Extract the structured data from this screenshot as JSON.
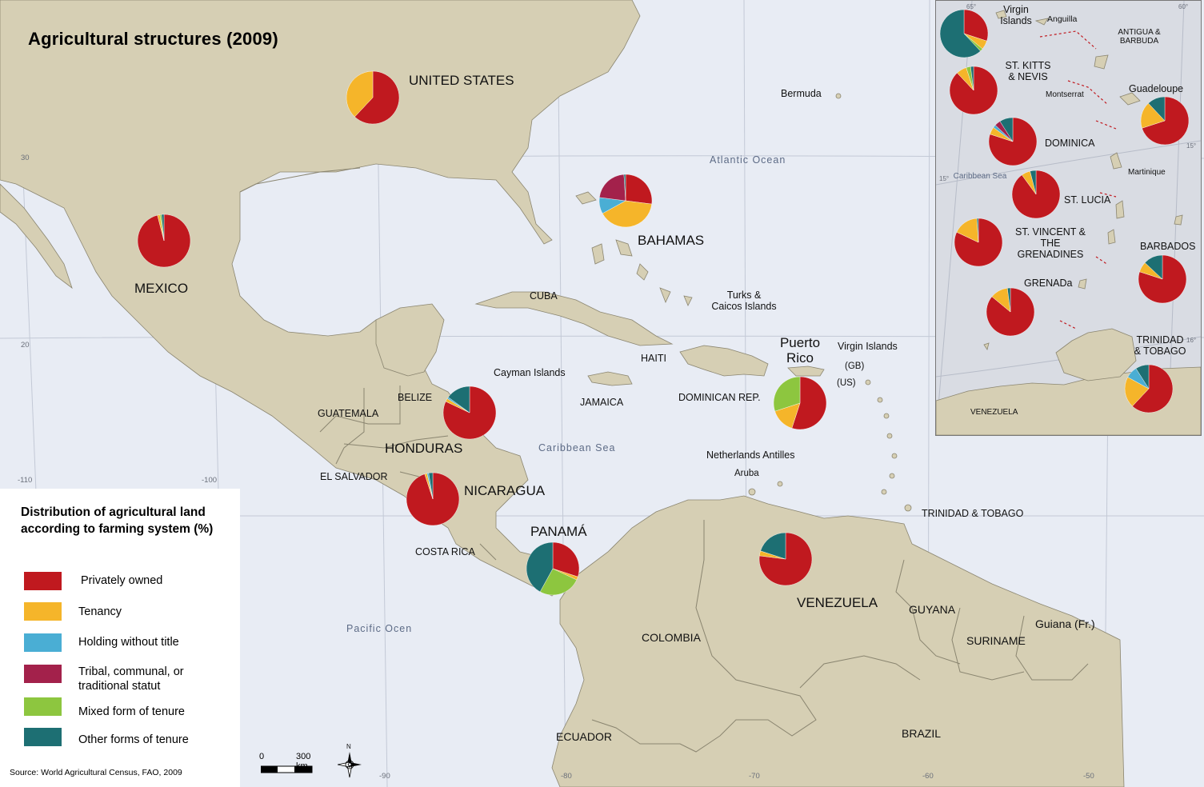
{
  "title": "Agricultural structures  (2009)",
  "source": "Source: World Agricultural Census, FAO, 2009",
  "colors": {
    "privately_owned": "#c0191f",
    "tenancy": "#f5b52a",
    "holding_without_title": "#4aaed4",
    "tribal": "#a3214b",
    "mixed": "#8dc63f",
    "other": "#1d6f73",
    "sea": "#e8ecf4",
    "land": "#d6cfb4"
  },
  "legend": {
    "title": "Distribution of agricultural land according to farming system (%)",
    "items": [
      {
        "label": "Privately owned",
        "color": "#c0191f"
      },
      {
        "label": "Tenancy",
        "color": "#f5b52a"
      },
      {
        "label": "Holding without title",
        "color": "#4aaed4"
      },
      {
        "label": "Tribal, communal, or traditional statut",
        "color": "#a3214b"
      },
      {
        "label": "Mixed form of tenure",
        "color": "#8dc63f"
      },
      {
        "label": "Other forms of tenure",
        "color": "#1d6f73"
      }
    ]
  },
  "labels": {
    "united_states": "UNITED STATES",
    "mexico": "MEXICO",
    "bahamas": "BAHAMAS",
    "cuba": "CUBA",
    "haiti": "HAITI",
    "jamaica": "JAMAICA",
    "dominican_rep": "DOMINICAN REP.",
    "puerto_rico": "Puerto Rico",
    "virgin_islands": "Virgin Islands",
    "gb": "(GB)",
    "us": "(US)",
    "cayman": "Cayman Islands",
    "belize": "BELIZE",
    "guatemala": "GUATEMALA",
    "honduras": "HONDURAS",
    "el_salvador": "EL SALVADOR",
    "nicaragua": "NICARAGUA",
    "costa_rica": "COSTA RICA",
    "panama": "PANAMÁ",
    "colombia": "COLOMBIA",
    "venezuela": "VENEZUELA",
    "guyana": "GUYANA",
    "suriname": "SURINAME",
    "guiana": "Guiana (Fr.)",
    "ecuador": "ECUADOR",
    "brazil": "BRAZIL",
    "bermuda": "Bermuda",
    "turks": "Turks & Caicos Islands",
    "netherlands_antilles": "Netherlands Antilles",
    "aruba": "Aruba",
    "trinidad": "TRINIDAD & TOBAGO",
    "atlantic": "Atlantic Ocean",
    "caribbean": "Caribbean Sea",
    "pacific": "Pacific Ocen"
  },
  "ticks": {
    "lat30": "30",
    "lat20": "20",
    "lon110": "-110",
    "lon100": "-100",
    "lon90": "-90",
    "lon80": "-80",
    "lon70": "-70",
    "lon60": "-60",
    "lon50": "-50"
  },
  "inset": {
    "virgin_islands": "Virgin Islands",
    "anguilla": "Anguilla",
    "antigua": "ANTIGUA & BARBUDA",
    "st_kitts": "ST. KITTS & NEVIS",
    "montserrat": "Montserrat",
    "guadeloupe": "Guadeloupe",
    "dominica": "DOMINICA",
    "caribbean": "Caribbean Sea",
    "martinique": "Martinique",
    "st_lucia": "ST. LUCIA",
    "st_vincent": "ST. VINCENT & THE GRENADINES",
    "barbados": "BARBADOS",
    "grenada": "GRENADa",
    "trinidad": "TRINIDAD & TOBAGO",
    "venezuela": "VENEZUELA",
    "tick65": "65°",
    "tick60": "60°",
    "tick15a": "15°",
    "tick15b": "15°",
    "tick16": "16°"
  },
  "scale": {
    "zero": "0",
    "dist": "300 km"
  },
  "compass": "N",
  "pies": [
    {
      "id": "united-states",
      "slices": [
        {
          "k": "privately_owned",
          "v": 62
        },
        {
          "k": "tenancy",
          "v": 38
        }
      ]
    },
    {
      "id": "mexico",
      "slices": [
        {
          "k": "privately_owned",
          "v": 96
        },
        {
          "k": "tenancy",
          "v": 1.5
        },
        {
          "k": "mixed",
          "v": 1
        },
        {
          "k": "other",
          "v": 1.5
        }
      ]
    },
    {
      "id": "bahamas",
      "slices": [
        {
          "k": "privately_owned",
          "v": 27
        },
        {
          "k": "tenancy",
          "v": 40
        },
        {
          "k": "holding_without_title",
          "v": 10
        },
        {
          "k": "tribal",
          "v": 22
        },
        {
          "k": "other",
          "v": 1
        }
      ]
    },
    {
      "id": "belize",
      "slices": [
        {
          "k": "privately_owned",
          "v": 82
        },
        {
          "k": "tenancy",
          "v": 2
        },
        {
          "k": "holding_without_title",
          "v": 1
        },
        {
          "k": "other",
          "v": 15
        }
      ]
    },
    {
      "id": "nicaragua",
      "slices": [
        {
          "k": "privately_owned",
          "v": 95
        },
        {
          "k": "tenancy",
          "v": 1.5
        },
        {
          "k": "holding_without_title",
          "v": 1
        },
        {
          "k": "other",
          "v": 2.5
        }
      ]
    },
    {
      "id": "panama",
      "slices": [
        {
          "k": "privately_owned",
          "v": 30
        },
        {
          "k": "tenancy",
          "v": 2
        },
        {
          "k": "mixed",
          "v": 26
        },
        {
          "k": "other",
          "v": 42
        }
      ]
    },
    {
      "id": "puerto-rico",
      "slices": [
        {
          "k": "privately_owned",
          "v": 55
        },
        {
          "k": "tenancy",
          "v": 15
        },
        {
          "k": "mixed",
          "v": 30
        }
      ]
    },
    {
      "id": "venezuela",
      "slices": [
        {
          "k": "privately_owned",
          "v": 77
        },
        {
          "k": "tenancy",
          "v": 3
        },
        {
          "k": "other",
          "v": 20
        }
      ]
    },
    {
      "id": "virgin-islands",
      "slices": [
        {
          "k": "privately_owned",
          "v": 30
        },
        {
          "k": "tenancy",
          "v": 6
        },
        {
          "k": "mixed",
          "v": 2
        },
        {
          "k": "other",
          "v": 62
        }
      ]
    },
    {
      "id": "st-kitts",
      "slices": [
        {
          "k": "privately_owned",
          "v": 88
        },
        {
          "k": "tenancy",
          "v": 7
        },
        {
          "k": "mixed",
          "v": 3
        },
        {
          "k": "other",
          "v": 2
        }
      ]
    },
    {
      "id": "guadeloupe",
      "slices": [
        {
          "k": "privately_owned",
          "v": 70
        },
        {
          "k": "tenancy",
          "v": 18
        },
        {
          "k": "other",
          "v": 12
        }
      ]
    },
    {
      "id": "dominica",
      "slices": [
        {
          "k": "privately_owned",
          "v": 80
        },
        {
          "k": "tenancy",
          "v": 5
        },
        {
          "k": "holding_without_title",
          "v": 2
        },
        {
          "k": "tribal",
          "v": 4
        },
        {
          "k": "other",
          "v": 9
        }
      ]
    },
    {
      "id": "st-lucia",
      "slices": [
        {
          "k": "privately_owned",
          "v": 90
        },
        {
          "k": "tenancy",
          "v": 6
        },
        {
          "k": "other",
          "v": 4
        }
      ]
    },
    {
      "id": "st-vincent",
      "slices": [
        {
          "k": "privately_owned",
          "v": 82
        },
        {
          "k": "tenancy",
          "v": 17
        },
        {
          "k": "other",
          "v": 1
        }
      ]
    },
    {
      "id": "barbados",
      "slices": [
        {
          "k": "privately_owned",
          "v": 80
        },
        {
          "k": "tenancy",
          "v": 7
        },
        {
          "k": "other",
          "v": 13
        }
      ]
    },
    {
      "id": "grenada",
      "slices": [
        {
          "k": "privately_owned",
          "v": 86
        },
        {
          "k": "tenancy",
          "v": 12
        },
        {
          "k": "other",
          "v": 2
        }
      ]
    },
    {
      "id": "trinidad",
      "slices": [
        {
          "k": "privately_owned",
          "v": 62
        },
        {
          "k": "tenancy",
          "v": 21
        },
        {
          "k": "holding_without_title",
          "v": 8
        },
        {
          "k": "other",
          "v": 9
        }
      ]
    }
  ]
}
